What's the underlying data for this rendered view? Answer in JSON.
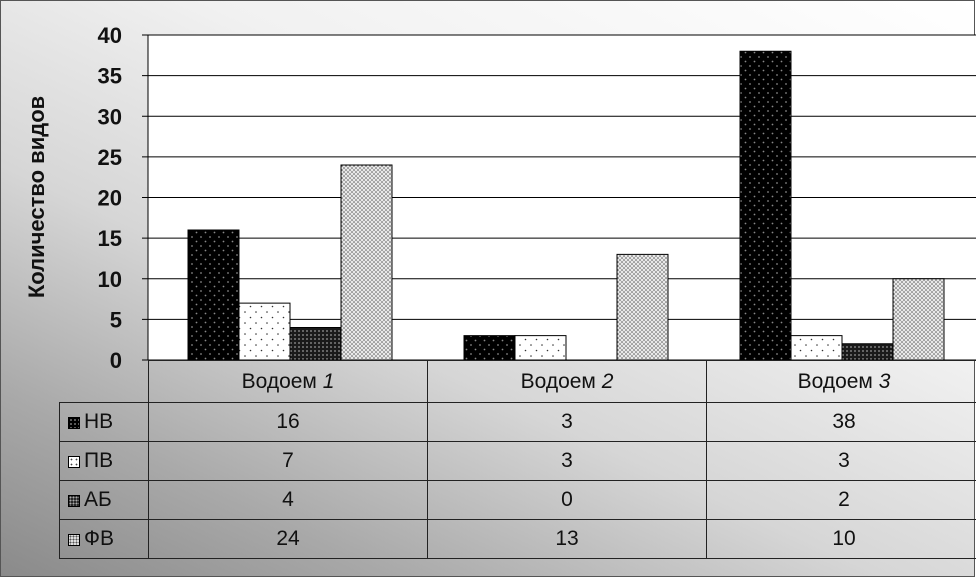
{
  "chart_data": {
    "type": "bar",
    "title": "",
    "xlabel": "",
    "ylabel": "Количество видов",
    "ylim": [
      0,
      40
    ],
    "yticks": [
      0,
      5,
      10,
      15,
      20,
      25,
      30,
      35,
      40
    ],
    "grid": true,
    "categories": [
      {
        "prefix": "Водоем ",
        "num": "1"
      },
      {
        "prefix": "Водоем ",
        "num": "2"
      },
      {
        "prefix": "Водоем ",
        "num": "3"
      }
    ],
    "series": [
      {
        "name": "НВ",
        "values": [
          16,
          3,
          38
        ],
        "pattern": "nv"
      },
      {
        "name": "ПВ",
        "values": [
          7,
          3,
          3
        ],
        "pattern": "pv"
      },
      {
        "name": "АБ",
        "values": [
          4,
          0,
          2
        ],
        "pattern": "ab"
      },
      {
        "name": "ФВ",
        "values": [
          24,
          13,
          10
        ],
        "pattern": "fv"
      }
    ],
    "legend": "data-table-below-chart"
  }
}
